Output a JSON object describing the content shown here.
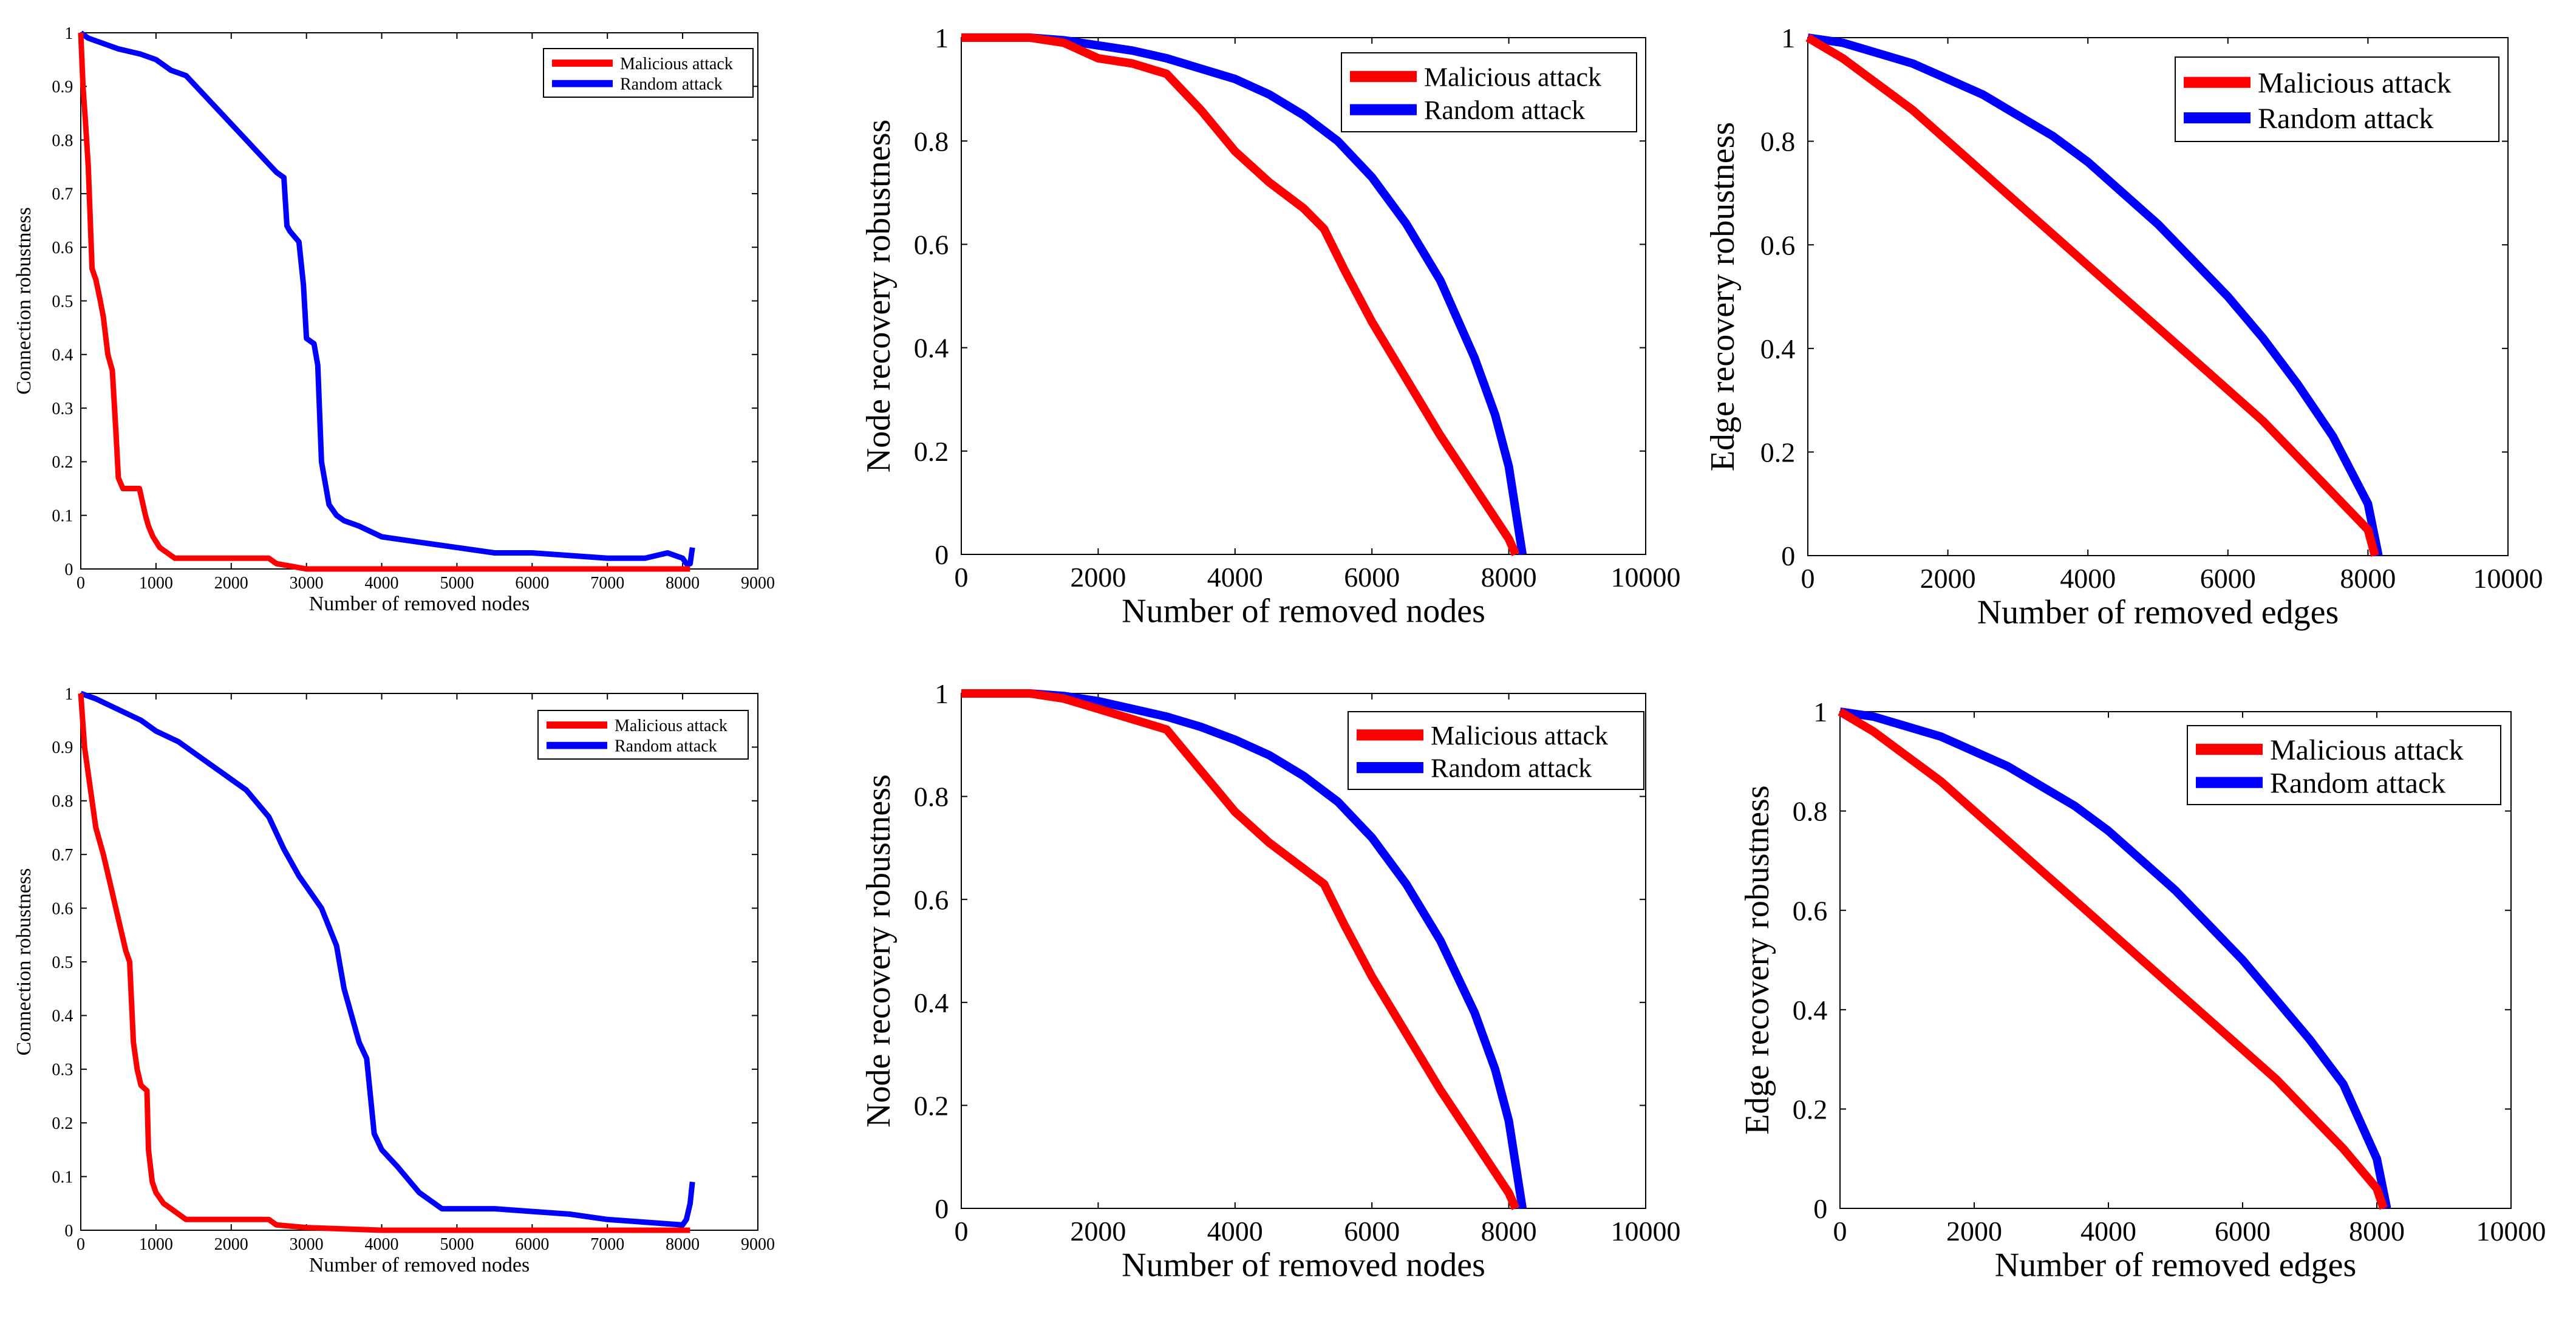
{
  "colors": {
    "malicious": "#ff0000",
    "random": "#0000ff",
    "axis": "#000000",
    "background": "#ffffff"
  },
  "chart_data": [
    {
      "type": "line",
      "panel": "top-left",
      "title": "",
      "xlabel": "Number of removed nodes",
      "ylabel": "Connection robustness",
      "xlim": [
        0,
        9000
      ],
      "ylim": [
        0,
        1
      ],
      "xticks": [
        "0",
        "1000",
        "2000",
        "3000",
        "4000",
        "5000",
        "6000",
        "7000",
        "8000",
        "9000"
      ],
      "yticks": [
        "0",
        "0.1",
        "0.2",
        "0.3",
        "0.4",
        "0.5",
        "0.6",
        "0.7",
        "0.8",
        "0.9",
        "1"
      ],
      "legend": {
        "position": "top-right",
        "entries": [
          "Malicious attack",
          "Random attack"
        ]
      },
      "series": [
        {
          "name": "Malicious attack",
          "color": "#ff0000",
          "x": [
            0,
            30,
            60,
            100,
            150,
            200,
            260,
            300,
            360,
            420,
            470,
            500,
            560,
            620,
            700,
            780,
            860,
            900,
            960,
            1050,
            1150,
            1250,
            1400,
            1600,
            2000,
            2500,
            2600,
            2800,
            3000,
            4000,
            5000,
            6000,
            7000,
            8000,
            8100
          ],
          "y": [
            1,
            0.9,
            0.84,
            0.75,
            0.56,
            0.54,
            0.5,
            0.47,
            0.4,
            0.37,
            0.25,
            0.17,
            0.15,
            0.15,
            0.15,
            0.15,
            0.1,
            0.08,
            0.06,
            0.04,
            0.03,
            0.02,
            0.02,
            0.02,
            0.02,
            0.02,
            0.01,
            0.005,
            0,
            0,
            0,
            0,
            0,
            0,
            0
          ]
        },
        {
          "name": "Random attack",
          "color": "#0000ff",
          "x": [
            0,
            100,
            300,
            500,
            800,
            1000,
            1200,
            1400,
            1600,
            1800,
            2000,
            2200,
            2400,
            2600,
            2700,
            2740,
            2780,
            2900,
            2960,
            3000,
            3100,
            3150,
            3200,
            3300,
            3400,
            3500,
            3700,
            4000,
            4500,
            5000,
            5500,
            6000,
            6500,
            7000,
            7500,
            7800,
            8000,
            8050,
            8100,
            8130
          ],
          "y": [
            1,
            0.99,
            0.98,
            0.97,
            0.96,
            0.95,
            0.93,
            0.92,
            0.89,
            0.86,
            0.83,
            0.8,
            0.77,
            0.74,
            0.73,
            0.64,
            0.63,
            0.61,
            0.53,
            0.43,
            0.42,
            0.38,
            0.2,
            0.12,
            0.1,
            0.09,
            0.08,
            0.06,
            0.05,
            0.04,
            0.03,
            0.03,
            0.025,
            0.02,
            0.02,
            0.03,
            0.02,
            0.01,
            0.01,
            0.04
          ]
        }
      ]
    },
    {
      "type": "line",
      "panel": "top-middle",
      "title": "",
      "xlabel": "Number of removed nodes",
      "ylabel": "Node recovery robustness",
      "xlim": [
        0,
        10000
      ],
      "ylim": [
        0,
        1
      ],
      "xticks": [
        "0",
        "2000",
        "4000",
        "6000",
        "8000",
        "10000"
      ],
      "yticks": [
        "0",
        "0.2",
        "0.4",
        "0.6",
        "0.8",
        "1"
      ],
      "legend": {
        "position": "top-right",
        "entries": [
          "Malicious attack",
          "Random attack"
        ]
      },
      "series": [
        {
          "name": "Malicious attack",
          "color": "#ff0000",
          "x": [
            0,
            1000,
            1500,
            2000,
            2500,
            3000,
            3500,
            4000,
            4500,
            5000,
            5300,
            5600,
            6000,
            6500,
            7000,
            7500,
            8000,
            8100
          ],
          "y": [
            1,
            1,
            0.99,
            0.96,
            0.95,
            0.93,
            0.86,
            0.78,
            0.72,
            0.67,
            0.63,
            0.55,
            0.45,
            0.34,
            0.23,
            0.13,
            0.03,
            0
          ]
        },
        {
          "name": "Random attack",
          "color": "#0000ff",
          "x": [
            0,
            1000,
            1500,
            2000,
            2500,
            3000,
            3500,
            4000,
            4500,
            5000,
            5500,
            6000,
            6500,
            7000,
            7500,
            7800,
            8000,
            8200
          ],
          "y": [
            1,
            1,
            0.995,
            0.985,
            0.975,
            0.96,
            0.94,
            0.92,
            0.89,
            0.85,
            0.8,
            0.73,
            0.64,
            0.53,
            0.38,
            0.27,
            0.17,
            0
          ]
        }
      ]
    },
    {
      "type": "line",
      "panel": "top-right",
      "title": "",
      "xlabel": "Number of removed edges",
      "ylabel": "Edge recovery robustness",
      "xlim": [
        0,
        10000
      ],
      "ylim": [
        0,
        1
      ],
      "xticks": [
        "0",
        "2000",
        "4000",
        "6000",
        "8000",
        "10000"
      ],
      "yticks": [
        "0",
        "0.2",
        "0.4",
        "0.6",
        "0.8",
        "1"
      ],
      "legend": {
        "position": "top-right",
        "entries": [
          "Malicious attack",
          "Random attack"
        ]
      },
      "series": [
        {
          "name": "Malicious attack",
          "color": "#ff0000",
          "x": [
            0,
            500,
            1000,
            1500,
            2000,
            2500,
            3000,
            3500,
            4000,
            4500,
            5000,
            5500,
            6000,
            6500,
            7000,
            7500,
            8000,
            8100
          ],
          "y": [
            1,
            0.96,
            0.91,
            0.86,
            0.8,
            0.74,
            0.68,
            0.62,
            0.56,
            0.5,
            0.44,
            0.38,
            0.32,
            0.26,
            0.19,
            0.12,
            0.05,
            0
          ]
        },
        {
          "name": "Random attack",
          "color": "#0000ff",
          "x": [
            0,
            500,
            1000,
            1500,
            2000,
            2500,
            3000,
            3500,
            4000,
            4500,
            5000,
            5500,
            6000,
            6500,
            7000,
            7500,
            8000,
            8150
          ],
          "y": [
            1,
            0.99,
            0.97,
            0.95,
            0.92,
            0.89,
            0.85,
            0.81,
            0.76,
            0.7,
            0.64,
            0.57,
            0.5,
            0.42,
            0.33,
            0.23,
            0.1,
            0
          ]
        }
      ]
    },
    {
      "type": "line",
      "panel": "bottom-left",
      "title": "",
      "xlabel": "Number of removed nodes",
      "ylabel": "Connection robustness",
      "xlim": [
        0,
        9000
      ],
      "ylim": [
        0,
        1
      ],
      "xticks": [
        "0",
        "1000",
        "2000",
        "3000",
        "4000",
        "5000",
        "6000",
        "7000",
        "8000",
        "9000"
      ],
      "yticks": [
        "0",
        "0.1",
        "0.2",
        "0.3",
        "0.4",
        "0.5",
        "0.6",
        "0.7",
        "0.8",
        "0.9",
        "1"
      ],
      "legend": {
        "position": "top-right",
        "entries": [
          "Malicious attack",
          "Random attack"
        ]
      },
      "series": [
        {
          "name": "Malicious attack",
          "color": "#ff0000",
          "x": [
            0,
            50,
            100,
            200,
            300,
            400,
            500,
            600,
            650,
            700,
            750,
            800,
            880,
            900,
            950,
            1000,
            1100,
            1200,
            1400,
            1600,
            2000,
            2500,
            2600,
            3000,
            4000,
            5000,
            7000,
            8000,
            8100
          ],
          "y": [
            1,
            0.9,
            0.85,
            0.75,
            0.7,
            0.64,
            0.58,
            0.52,
            0.5,
            0.35,
            0.3,
            0.27,
            0.26,
            0.15,
            0.09,
            0.07,
            0.05,
            0.04,
            0.02,
            0.02,
            0.02,
            0.02,
            0.01,
            0.005,
            0,
            0,
            0,
            0,
            0
          ]
        },
        {
          "name": "Random attack",
          "color": "#0000ff",
          "x": [
            0,
            200,
            500,
            800,
            1000,
            1300,
            1600,
            1900,
            2200,
            2500,
            2700,
            2900,
            3000,
            3200,
            3400,
            3500,
            3600,
            3700,
            3800,
            3900,
            4000,
            4200,
            4500,
            4800,
            5000,
            5500,
            6000,
            6500,
            7000,
            7500,
            8000,
            8050,
            8100,
            8130
          ],
          "y": [
            1,
            0.99,
            0.97,
            0.95,
            0.93,
            0.91,
            0.88,
            0.85,
            0.82,
            0.77,
            0.71,
            0.66,
            0.64,
            0.6,
            0.53,
            0.45,
            0.4,
            0.35,
            0.32,
            0.18,
            0.15,
            0.12,
            0.07,
            0.04,
            0.04,
            0.04,
            0.035,
            0.03,
            0.02,
            0.015,
            0.01,
            0.02,
            0.05,
            0.09
          ]
        }
      ]
    },
    {
      "type": "line",
      "panel": "bottom-middle",
      "title": "",
      "xlabel": "Number of removed nodes",
      "ylabel": "Node recovery robustness",
      "xlim": [
        0,
        10000
      ],
      "ylim": [
        0,
        1
      ],
      "xticks": [
        "0",
        "2000",
        "4000",
        "6000",
        "8000",
        "10000"
      ],
      "yticks": [
        "0",
        "0.2",
        "0.4",
        "0.6",
        "0.8",
        "1"
      ],
      "legend": {
        "position": "top-right",
        "entries": [
          "Malicious attack",
          "Random attack"
        ]
      },
      "series": [
        {
          "name": "Malicious attack",
          "color": "#ff0000",
          "x": [
            0,
            1000,
            1500,
            2000,
            2500,
            3000,
            3500,
            4000,
            4500,
            5000,
            5300,
            5600,
            6000,
            6500,
            7000,
            7500,
            8000,
            8100
          ],
          "y": [
            1,
            1,
            0.99,
            0.97,
            0.95,
            0.93,
            0.85,
            0.77,
            0.71,
            0.66,
            0.63,
            0.55,
            0.45,
            0.34,
            0.23,
            0.13,
            0.03,
            0
          ]
        },
        {
          "name": "Random attack",
          "color": "#0000ff",
          "x": [
            0,
            1000,
            1500,
            2000,
            2500,
            3000,
            3500,
            4000,
            4500,
            5000,
            5500,
            6000,
            6500,
            7000,
            7500,
            7800,
            8000,
            8200
          ],
          "y": [
            1,
            1,
            0.995,
            0.985,
            0.97,
            0.955,
            0.935,
            0.91,
            0.88,
            0.84,
            0.79,
            0.72,
            0.63,
            0.52,
            0.38,
            0.27,
            0.17,
            0
          ]
        }
      ]
    },
    {
      "type": "line",
      "panel": "bottom-right",
      "title": "",
      "xlabel": "Number of removed edges",
      "ylabel": "Edge recovery robustness",
      "xlim": [
        0,
        10000
      ],
      "ylim": [
        0,
        1
      ],
      "xticks": [
        "0",
        "2000",
        "4000",
        "6000",
        "8000",
        "10000"
      ],
      "yticks": [
        "0",
        "0.2",
        "0.4",
        "0.6",
        "0.8",
        "1"
      ],
      "legend": {
        "position": "top-right",
        "entries": [
          "Malicious attack",
          "Random attack"
        ]
      },
      "series": [
        {
          "name": "Malicious attack",
          "color": "#ff0000",
          "x": [
            0,
            500,
            1000,
            1500,
            2000,
            2500,
            3000,
            3500,
            4000,
            4500,
            5000,
            5500,
            6000,
            6500,
            7000,
            7500,
            8000,
            8100
          ],
          "y": [
            1,
            0.96,
            0.91,
            0.86,
            0.8,
            0.74,
            0.68,
            0.62,
            0.56,
            0.5,
            0.44,
            0.38,
            0.32,
            0.26,
            0.19,
            0.12,
            0.04,
            0
          ]
        },
        {
          "name": "Random attack",
          "color": "#0000ff",
          "x": [
            0,
            500,
            1000,
            1500,
            2000,
            2500,
            3000,
            3500,
            4000,
            4500,
            5000,
            5500,
            6000,
            6500,
            7000,
            7500,
            8000,
            8150
          ],
          "y": [
            1,
            0.99,
            0.97,
            0.95,
            0.92,
            0.89,
            0.85,
            0.81,
            0.76,
            0.7,
            0.64,
            0.57,
            0.5,
            0.42,
            0.34,
            0.25,
            0.1,
            0
          ]
        }
      ]
    }
  ]
}
